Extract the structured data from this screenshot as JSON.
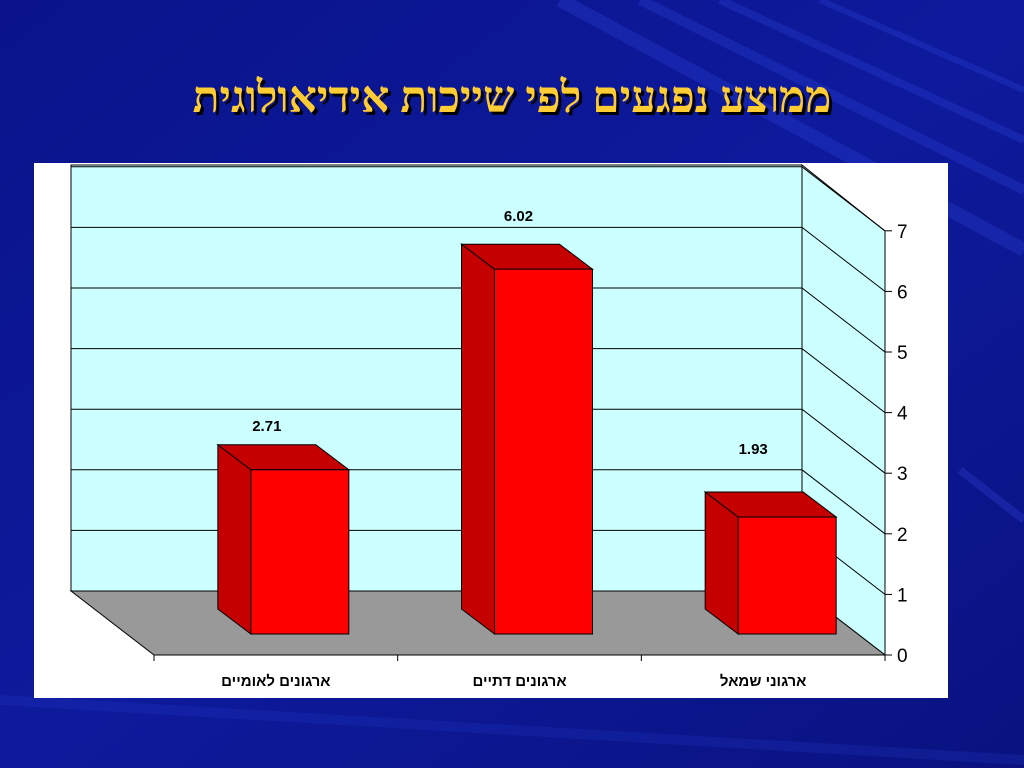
{
  "slide": {
    "title": "ממוצע נפגעים לפי שייכות אידיאולוגית",
    "background_color": "#0c1690",
    "title_color": "#ffcc33"
  },
  "chart_data": {
    "type": "bar",
    "style": "3d-column",
    "categories": [
      "ארגונים לאומיים",
      "ארגונים דתיים",
      "ארגוני שמאל"
    ],
    "values": [
      2.71,
      6.02,
      1.93
    ],
    "data_labels": [
      "2.71",
      "6.02",
      "1.93"
    ],
    "title": "",
    "xlabel": "",
    "ylabel": "",
    "ylim": [
      0,
      7
    ],
    "yticks": [
      0,
      1,
      2,
      3,
      4,
      5,
      6,
      7
    ],
    "y_axis_side": "right",
    "grid": true,
    "legend": "none",
    "bar_color": "#ff0000",
    "bar_side_color": "#c40000",
    "floor_color": "#999999",
    "wall_color": "#ccffff"
  }
}
